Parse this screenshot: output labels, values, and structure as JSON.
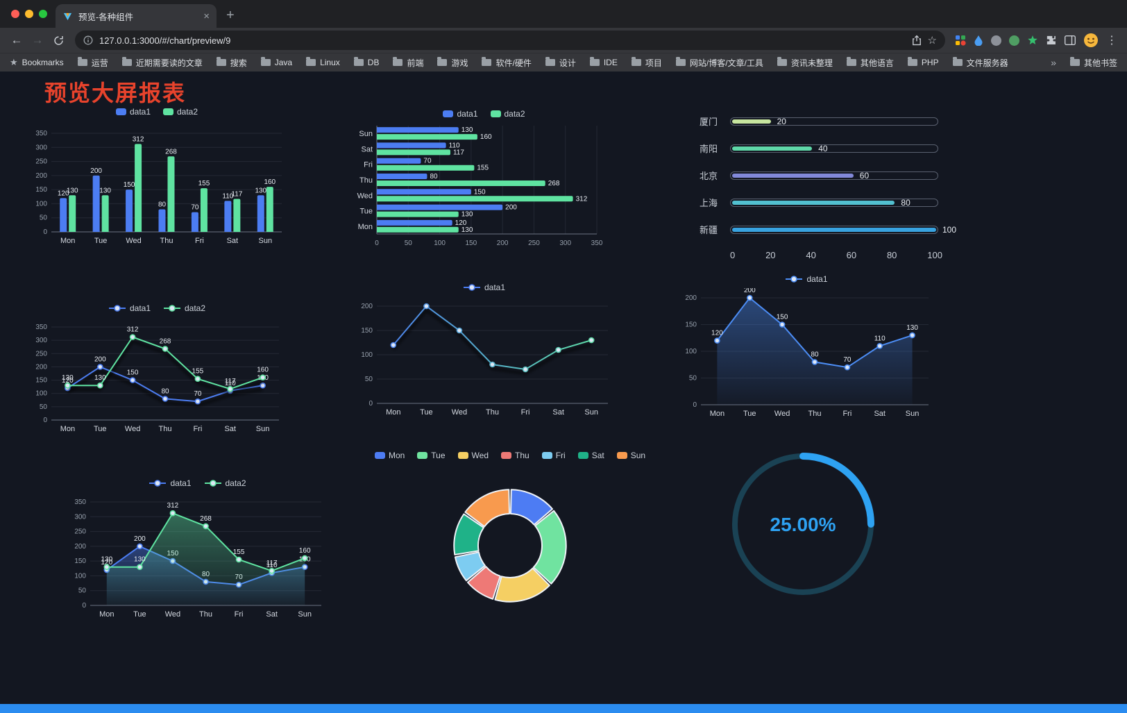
{
  "browser": {
    "tab": {
      "title": "预览-各种组件"
    },
    "toolbar": {
      "url": "127.0.0.1:3000/#/chart/preview/9"
    },
    "icons": {
      "back": "←",
      "forward": "→",
      "star": "☆",
      "menu": "⋮",
      "overflow": "»",
      "close_tab": "×",
      "new_tab": "+",
      "bookmarks_star": "★"
    },
    "bookmarks": {
      "first_label": "Bookmarks",
      "items": [
        "运营",
        "近期需要读的文章",
        "搜索",
        "Java",
        "Linux",
        "DB",
        "前端",
        "游戏",
        "软件/硬件",
        "设计",
        "IDE",
        "项目",
        "网站/博客/文章/工具",
        "资讯未整理",
        "其他语言",
        "PHP",
        "文件服务器"
      ],
      "other_label": "其他书签"
    }
  },
  "page": {
    "title": "预览大屏报表",
    "title_color": "#e8432c",
    "background": "#131721",
    "bottom_bar_color": "#2b8cf0"
  },
  "chart_data": [
    {
      "type": "bar",
      "categories": [
        "Mon",
        "Tue",
        "Wed",
        "Thu",
        "Fri",
        "Sat",
        "Sun"
      ],
      "series": [
        {
          "name": "data1",
          "color": "#4c7df2",
          "values": [
            120,
            200,
            150,
            80,
            70,
            110,
            130
          ]
        },
        {
          "name": "data2",
          "color": "#5fe3a1",
          "values": [
            130,
            130,
            312,
            268,
            155,
            117,
            160
          ]
        }
      ],
      "ylim": [
        0,
        350
      ],
      "ytick": 50,
      "grid": true,
      "value_labels": true,
      "legend_position": "top"
    },
    {
      "type": "hbar",
      "categories": [
        "Mon",
        "Tue",
        "Wed",
        "Thu",
        "Fri",
        "Sat",
        "Sun"
      ],
      "series": [
        {
          "name": "data1",
          "color": "#4c7df2",
          "values": [
            120,
            200,
            150,
            80,
            70,
            110,
            130
          ]
        },
        {
          "name": "data2",
          "color": "#5fe3a1",
          "values": [
            130,
            130,
            312,
            268,
            155,
            117,
            160
          ]
        }
      ],
      "xlim": [
        0,
        350
      ],
      "xtick": 50,
      "grid": true,
      "value_labels": true,
      "legend_position": "top"
    },
    {
      "type": "progress",
      "max": 100,
      "axis_ticks": [
        0,
        20,
        40,
        60,
        80,
        100
      ],
      "rows": [
        {
          "label": "厦门",
          "value": 20,
          "color": "#c7e59f"
        },
        {
          "label": "南阳",
          "value": 40,
          "color": "#5fd8a8"
        },
        {
          "label": "北京",
          "value": 60,
          "color": "#8289d9"
        },
        {
          "label": "上海",
          "value": 80,
          "color": "#52c0d0"
        },
        {
          "label": "新疆",
          "value": 100,
          "color": "#38a3e0"
        }
      ]
    },
    {
      "type": "line",
      "categories": [
        "Mon",
        "Tue",
        "Wed",
        "Thu",
        "Fri",
        "Sat",
        "Sun"
      ],
      "series": [
        {
          "name": "data1",
          "color": "#4c7df2",
          "values": [
            120,
            200,
            150,
            80,
            70,
            110,
            130
          ]
        },
        {
          "name": "data2",
          "color": "#5fe3a1",
          "values": [
            130,
            130,
            312,
            268,
            155,
            117,
            160
          ]
        }
      ],
      "ylim": [
        0,
        350
      ],
      "ytick": 50,
      "value_labels": true,
      "shadow": true,
      "grid": true
    },
    {
      "type": "line",
      "categories": [
        "Mon",
        "Tue",
        "Wed",
        "Thu",
        "Fri",
        "Sat",
        "Sun"
      ],
      "series": [
        {
          "name": "data1",
          "color": "#4c7df2",
          "gradient": [
            "#4c7df2",
            "#5fe3a1"
          ],
          "values": [
            120,
            200,
            150,
            80,
            70,
            110,
            130
          ]
        }
      ],
      "ylim": [
        0,
        200
      ],
      "ytick": 50,
      "value_labels": false,
      "shadow": true,
      "grid": true
    },
    {
      "type": "line",
      "categories": [
        "Mon",
        "Tue",
        "Wed",
        "Thu",
        "Fri",
        "Sat",
        "Sun"
      ],
      "series": [
        {
          "name": "data1",
          "color": "#4c8df5",
          "area": true,
          "values": [
            120,
            200,
            150,
            80,
            70,
            110,
            130
          ]
        }
      ],
      "ylim": [
        0,
        200
      ],
      "ytick": 50,
      "value_labels": true,
      "grid": true
    },
    {
      "type": "line",
      "categories": [
        "Mon",
        "Tue",
        "Wed",
        "Thu",
        "Fri",
        "Sat",
        "Sun"
      ],
      "series": [
        {
          "name": "data1",
          "color": "#4c7df2",
          "area": true,
          "values": [
            120,
            200,
            150,
            80,
            70,
            110,
            130
          ]
        },
        {
          "name": "data2",
          "color": "#5fe3a1",
          "area": true,
          "values": [
            130,
            130,
            312,
            268,
            155,
            117,
            160
          ]
        }
      ],
      "ylim": [
        0,
        350
      ],
      "ytick": 50,
      "value_labels": true,
      "grid": true
    },
    {
      "type": "pie",
      "categories": [
        "Mon",
        "Tue",
        "Wed",
        "Thu",
        "Fri",
        "Sat",
        "Sun"
      ],
      "values": [
        120,
        200,
        150,
        80,
        70,
        110,
        130
      ],
      "colors": [
        "#4d7cf3",
        "#70e3a0",
        "#f5cf63",
        "#ee7976",
        "#7dccf1",
        "#1fb288",
        "#f89a4e"
      ],
      "inner_radius": 0.57,
      "legend_position": "top"
    },
    {
      "type": "gauge",
      "value": 25,
      "max": 100,
      "label": "25.00%",
      "color": "#2ea2f2",
      "track_color": "#1a4254"
    }
  ]
}
